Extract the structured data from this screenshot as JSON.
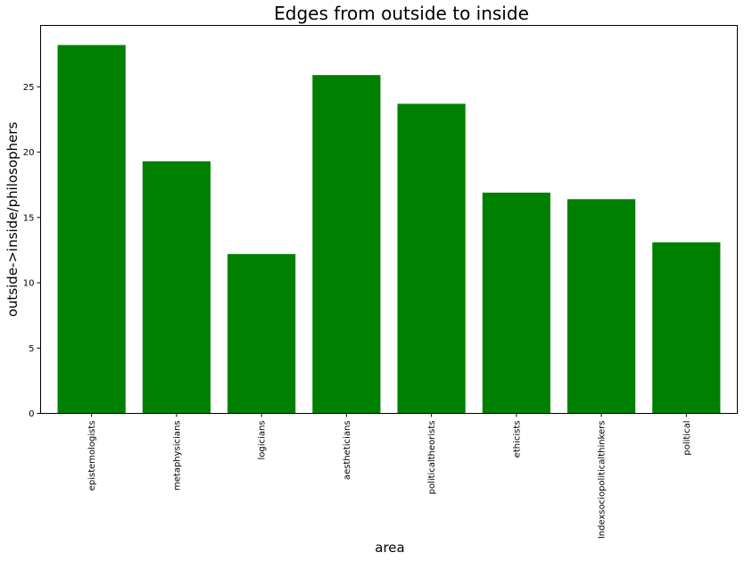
{
  "chart_data": {
    "type": "bar",
    "title": "Edges from outside to inside",
    "xlabel": "area",
    "ylabel": "outside->inside/philosophers",
    "categories": [
      "epistemologists",
      "metaphysicians",
      "logicians",
      "aestheticians",
      "politicaltheorists",
      "ethicists",
      "Indexsociopoliticalthinkers",
      "political"
    ],
    "values": [
      28.2,
      19.3,
      12.2,
      25.9,
      23.7,
      16.9,
      16.4,
      13.1
    ],
    "ylim": [
      0,
      29.7
    ],
    "yticks": [
      0,
      5,
      10,
      15,
      20,
      25
    ],
    "grid": false,
    "bar_color": "#008000"
  }
}
